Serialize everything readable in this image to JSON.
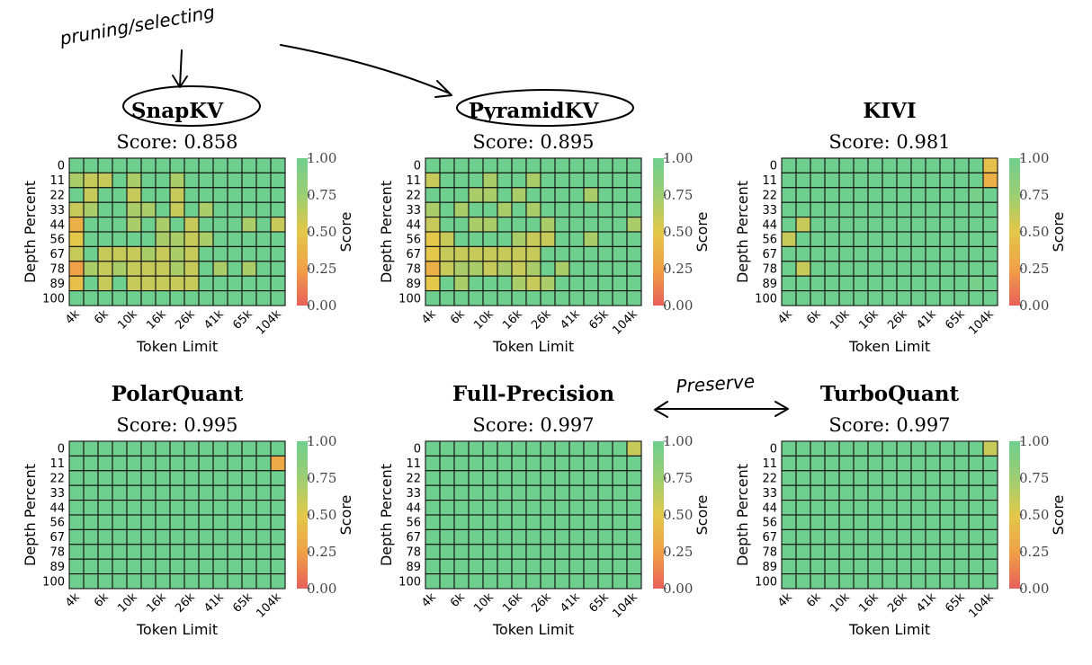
{
  "annotations": {
    "pruning_note": "pruning/selecting",
    "preserve_note": "Preserve"
  },
  "chart_data": [
    {
      "type": "heatmap",
      "title": "SnapKV",
      "score_label": "Score:",
      "score_value": "0.858",
      "xlabel": "Token Limit",
      "ylabel": "Depth Percent",
      "colorbar_label": "Score",
      "x_ticks": [
        "4k",
        "6k",
        "10k",
        "16k",
        "26k",
        "41k",
        "65k",
        "104k"
      ],
      "y_ticks": [
        "0",
        "11",
        "22",
        "33",
        "44",
        "56",
        "67",
        "78",
        "89",
        "100"
      ],
      "colorbar_ticks": [
        "1.00",
        "0.75",
        "0.50",
        "0.25",
        "0.00"
      ],
      "colorscale": [
        "#e8605a",
        "#f0a147",
        "#e3c84b",
        "#9cce72",
        "#6fcf8f"
      ],
      "values": [
        [
          1,
          1,
          1,
          1,
          1,
          1,
          1,
          1,
          1,
          1,
          1,
          1,
          1,
          1,
          1
        ],
        [
          0.7,
          0.6,
          0.6,
          1,
          0.7,
          1,
          1,
          0.7,
          1,
          1,
          1,
          1,
          1,
          1,
          1
        ],
        [
          1,
          0.6,
          1,
          1,
          0.6,
          1,
          1,
          0.6,
          1,
          1,
          1,
          1,
          1,
          1,
          1
        ],
        [
          0.6,
          0.7,
          1,
          1,
          0.7,
          0.7,
          1,
          0.6,
          1,
          0.7,
          1,
          1,
          1,
          1,
          1
        ],
        [
          0.35,
          1,
          1,
          1,
          0.7,
          1,
          0.7,
          1,
          0.6,
          1,
          1,
          1,
          0.7,
          1,
          0.6
        ],
        [
          0.5,
          1,
          1,
          1,
          1,
          1,
          0.7,
          0.7,
          0.6,
          0.7,
          1,
          1,
          1,
          1,
          1
        ],
        [
          0.6,
          1,
          0.6,
          0.6,
          0.6,
          0.7,
          0.6,
          0.7,
          0.6,
          1,
          1,
          1,
          1,
          1,
          1
        ],
        [
          0.25,
          0.7,
          0.6,
          0.7,
          0.6,
          0.6,
          0.6,
          0.7,
          0.6,
          1,
          0.7,
          1,
          0.7,
          1,
          1
        ],
        [
          0.45,
          1,
          0.6,
          1,
          0.6,
          0.6,
          0.6,
          0.6,
          0.6,
          1,
          1,
          1,
          1,
          1,
          1
        ],
        [
          1,
          1,
          1,
          1,
          1,
          1,
          1,
          1,
          1,
          1,
          1,
          1,
          1,
          1,
          1
        ]
      ]
    },
    {
      "type": "heatmap",
      "title": "PyramidKV",
      "score_label": "Score:",
      "score_value": "0.895",
      "xlabel": "Token Limit",
      "ylabel": "Depth Percent",
      "colorbar_label": "Score",
      "x_ticks": [
        "4k",
        "6k",
        "10k",
        "16k",
        "26k",
        "41k",
        "65k",
        "104k"
      ],
      "y_ticks": [
        "0",
        "11",
        "22",
        "33",
        "44",
        "56",
        "67",
        "78",
        "89",
        "100"
      ],
      "colorbar_ticks": [
        "1.00",
        "0.75",
        "0.50",
        "0.25",
        "0.00"
      ],
      "colorscale": [
        "#e8605a",
        "#f0a147",
        "#e3c84b",
        "#9cce72",
        "#6fcf8f"
      ],
      "values": [
        [
          1,
          1,
          1,
          1,
          1,
          1,
          1,
          1,
          1,
          1,
          1,
          1,
          1,
          1,
          1
        ],
        [
          0.6,
          1,
          1,
          1,
          0.7,
          1,
          1,
          0.7,
          1,
          1,
          1,
          1,
          1,
          1,
          1
        ],
        [
          1,
          1,
          1,
          0.7,
          0.7,
          1,
          0.7,
          1,
          1,
          1,
          1,
          0.7,
          1,
          1,
          1
        ],
        [
          0.7,
          1,
          0.7,
          1,
          1,
          0.7,
          1,
          0.7,
          1,
          1,
          1,
          1,
          1,
          1,
          1
        ],
        [
          0.6,
          1,
          1,
          0.7,
          0.7,
          1,
          1,
          1,
          0.7,
          1,
          1,
          1,
          1,
          1,
          0.7
        ],
        [
          0.5,
          0.6,
          1,
          1,
          1,
          1,
          0.7,
          0.6,
          0.6,
          1,
          1,
          0.7,
          1,
          1,
          1
        ],
        [
          0.5,
          0.6,
          0.6,
          0.6,
          0.6,
          0.6,
          0.6,
          0.6,
          1,
          1,
          1,
          1,
          1,
          1,
          1
        ],
        [
          0.35,
          0.6,
          0.7,
          0.7,
          0.6,
          0.7,
          0.6,
          0.7,
          1,
          0.7,
          1,
          1,
          1,
          1,
          1
        ],
        [
          0.5,
          1,
          0.7,
          1,
          1,
          1,
          0.7,
          0.6,
          0.7,
          1,
          1,
          1,
          1,
          1,
          1
        ],
        [
          1,
          1,
          1,
          1,
          1,
          1,
          1,
          1,
          1,
          1,
          1,
          1,
          1,
          1,
          1
        ]
      ]
    },
    {
      "type": "heatmap",
      "title": "KIVI",
      "score_label": "Score:",
      "score_value": "0.981",
      "xlabel": "Token Limit",
      "ylabel": "Depth Percent",
      "colorbar_label": "Score",
      "x_ticks": [
        "4k",
        "6k",
        "10k",
        "16k",
        "26k",
        "41k",
        "65k",
        "104k"
      ],
      "y_ticks": [
        "0",
        "11",
        "22",
        "33",
        "44",
        "56",
        "67",
        "78",
        "89",
        "100"
      ],
      "colorbar_ticks": [
        "1.00",
        "0.75",
        "0.50",
        "0.25",
        "0.00"
      ],
      "colorscale": [
        "#e8605a",
        "#f0a147",
        "#e3c84b",
        "#9cce72",
        "#6fcf8f"
      ],
      "values": [
        [
          1,
          1,
          1,
          1,
          1,
          1,
          1,
          1,
          1,
          1,
          1,
          1,
          1,
          1,
          0.45
        ],
        [
          1,
          1,
          1,
          1,
          1,
          1,
          1,
          1,
          1,
          1,
          1,
          1,
          1,
          1,
          0.35
        ],
        [
          1,
          1,
          1,
          1,
          1,
          1,
          1,
          1,
          1,
          1,
          1,
          1,
          1,
          0.95,
          1
        ],
        [
          1,
          1,
          1,
          1,
          1,
          1,
          1,
          1,
          1,
          1,
          1,
          1,
          1,
          1,
          1
        ],
        [
          1,
          0.6,
          1,
          1,
          1,
          1,
          1,
          1,
          1,
          1,
          1,
          1,
          1,
          1,
          1
        ],
        [
          0.6,
          1,
          1,
          1,
          1,
          1,
          1,
          1,
          1,
          1,
          1,
          1,
          1,
          1,
          1
        ],
        [
          1,
          1,
          1,
          1,
          1,
          1,
          1,
          1,
          1,
          1,
          1,
          1,
          1,
          1,
          1
        ],
        [
          1,
          0.6,
          1,
          1,
          1,
          1,
          1,
          1,
          1,
          1,
          1,
          1,
          1,
          1,
          1
        ],
        [
          1,
          1,
          1,
          1,
          1,
          1,
          1,
          1,
          1,
          1,
          1,
          1,
          1,
          0.95,
          1
        ],
        [
          1,
          1,
          1,
          1,
          1,
          1,
          1,
          1,
          1,
          1,
          1,
          1,
          1,
          1,
          1
        ]
      ]
    },
    {
      "type": "heatmap",
      "title": "PolarQuant",
      "score_label": "Score:",
      "score_value": "0.995",
      "xlabel": "Token Limit",
      "ylabel": "Depth Percent",
      "colorbar_label": "Score",
      "x_ticks": [
        "4k",
        "6k",
        "10k",
        "16k",
        "26k",
        "41k",
        "65k",
        "104k"
      ],
      "y_ticks": [
        "0",
        "11",
        "22",
        "33",
        "44",
        "56",
        "67",
        "78",
        "89",
        "100"
      ],
      "colorbar_ticks": [
        "1.00",
        "0.75",
        "0.50",
        "0.25",
        "0.00"
      ],
      "colorscale": [
        "#e8605a",
        "#f0a147",
        "#e3c84b",
        "#9cce72",
        "#6fcf8f"
      ],
      "values": [
        [
          1,
          1,
          1,
          1,
          1,
          1,
          1,
          1,
          1,
          1,
          1,
          1,
          1,
          1,
          1
        ],
        [
          1,
          1,
          1,
          1,
          1,
          1,
          1,
          1,
          1,
          1,
          1,
          1,
          1,
          1,
          0.3
        ],
        [
          1,
          1,
          1,
          1,
          1,
          1,
          1,
          1,
          1,
          1,
          1,
          1,
          1,
          1,
          1
        ],
        [
          1,
          1,
          1,
          1,
          1,
          1,
          1,
          1,
          1,
          1,
          1,
          1,
          1,
          1,
          1
        ],
        [
          1,
          1,
          1,
          1,
          1,
          1,
          1,
          1,
          1,
          1,
          1,
          1,
          1,
          1,
          1
        ],
        [
          1,
          1,
          1,
          1,
          1,
          1,
          1,
          1,
          1,
          1,
          1,
          1,
          1,
          1,
          1
        ],
        [
          1,
          1,
          1,
          1,
          1,
          1,
          1,
          1,
          1,
          1,
          1,
          1,
          1,
          1,
          1
        ],
        [
          1,
          1,
          1,
          1,
          1,
          1,
          1,
          1,
          1,
          1,
          1,
          1,
          1,
          1,
          1
        ],
        [
          1,
          1,
          1,
          1,
          1,
          1,
          1,
          1,
          1,
          1,
          1,
          1,
          1,
          1,
          1
        ],
        [
          1,
          1,
          1,
          1,
          1,
          1,
          1,
          1,
          1,
          1,
          1,
          1,
          1,
          1,
          1
        ]
      ]
    },
    {
      "type": "heatmap",
      "title": "Full-Precision",
      "score_label": "Score:",
      "score_value": "0.997",
      "xlabel": "Token Limit",
      "ylabel": "Depth Percent",
      "colorbar_label": "Score",
      "x_ticks": [
        "4k",
        "6k",
        "10k",
        "16k",
        "26k",
        "41k",
        "65k",
        "104k"
      ],
      "y_ticks": [
        "0",
        "11",
        "22",
        "33",
        "44",
        "56",
        "67",
        "78",
        "89",
        "100"
      ],
      "colorbar_ticks": [
        "1.00",
        "0.75",
        "0.50",
        "0.25",
        "0.00"
      ],
      "colorscale": [
        "#e8605a",
        "#f0a147",
        "#e3c84b",
        "#9cce72",
        "#6fcf8f"
      ],
      "values": [
        [
          1,
          1,
          1,
          1,
          1,
          1,
          1,
          1,
          1,
          1,
          1,
          1,
          1,
          1,
          0.6
        ],
        [
          1,
          1,
          1,
          1,
          1,
          1,
          1,
          1,
          1,
          1,
          1,
          1,
          1,
          1,
          1
        ],
        [
          1,
          1,
          1,
          1,
          1,
          1,
          1,
          1,
          1,
          1,
          1,
          1,
          1,
          1,
          1
        ],
        [
          1,
          1,
          1,
          1,
          1,
          1,
          1,
          1,
          1,
          1,
          1,
          1,
          1,
          1,
          1
        ],
        [
          1,
          1,
          1,
          1,
          1,
          1,
          1,
          1,
          1,
          1,
          1,
          1,
          1,
          1,
          1
        ],
        [
          1,
          1,
          1,
          1,
          1,
          1,
          1,
          1,
          1,
          1,
          1,
          1,
          1,
          1,
          1
        ],
        [
          1,
          1,
          1,
          1,
          1,
          1,
          1,
          1,
          1,
          1,
          1,
          1,
          1,
          1,
          1
        ],
        [
          1,
          1,
          1,
          1,
          1,
          1,
          1,
          1,
          1,
          1,
          1,
          1,
          1,
          1,
          1
        ],
        [
          1,
          1,
          1,
          1,
          1,
          1,
          1,
          1,
          1,
          1,
          1,
          1,
          1,
          1,
          1
        ],
        [
          1,
          1,
          1,
          1,
          1,
          1,
          1,
          1,
          1,
          1,
          1,
          1,
          1,
          1,
          1
        ]
      ]
    },
    {
      "type": "heatmap",
      "title": "TurboQuant",
      "score_label": "Score:",
      "score_value": "0.997",
      "xlabel": "Token Limit",
      "ylabel": "Depth Percent",
      "colorbar_label": "Score",
      "x_ticks": [
        "4k",
        "6k",
        "10k",
        "16k",
        "26k",
        "41k",
        "65k",
        "104k"
      ],
      "y_ticks": [
        "0",
        "11",
        "22",
        "33",
        "44",
        "56",
        "67",
        "78",
        "89",
        "100"
      ],
      "colorbar_ticks": [
        "1.00",
        "0.75",
        "0.50",
        "0.25",
        "0.00"
      ],
      "colorscale": [
        "#e8605a",
        "#f0a147",
        "#e3c84b",
        "#9cce72",
        "#6fcf8f"
      ],
      "values": [
        [
          1,
          1,
          1,
          1,
          1,
          1,
          1,
          1,
          1,
          1,
          1,
          1,
          1,
          1,
          0.6
        ],
        [
          1,
          1,
          1,
          1,
          1,
          1,
          1,
          1,
          1,
          1,
          1,
          1,
          1,
          1,
          1
        ],
        [
          1,
          1,
          1,
          1,
          1,
          1,
          1,
          1,
          1,
          1,
          1,
          1,
          1,
          1,
          1
        ],
        [
          1,
          1,
          1,
          1,
          1,
          1,
          1,
          1,
          1,
          1,
          1,
          1,
          1,
          1,
          1
        ],
        [
          1,
          1,
          1,
          1,
          1,
          1,
          1,
          1,
          1,
          1,
          1,
          1,
          1,
          1,
          1
        ],
        [
          1,
          1,
          1,
          1,
          1,
          1,
          1,
          1,
          1,
          1,
          1,
          1,
          1,
          1,
          1
        ],
        [
          1,
          1,
          1,
          1,
          1,
          1,
          1,
          1,
          1,
          1,
          1,
          1,
          1,
          1,
          1
        ],
        [
          1,
          1,
          1,
          1,
          1,
          1,
          1,
          1,
          1,
          1,
          1,
          1,
          1,
          1,
          1
        ],
        [
          1,
          1,
          1,
          1,
          1,
          1,
          1,
          1,
          1,
          1,
          1,
          1,
          1,
          1,
          1
        ],
        [
          1,
          1,
          1,
          1,
          1,
          1,
          1,
          1,
          1,
          1,
          1,
          1,
          1,
          1,
          1
        ]
      ]
    }
  ]
}
